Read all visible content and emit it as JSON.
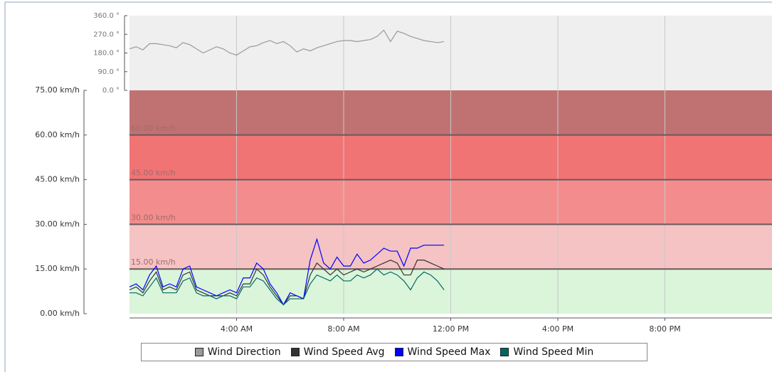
{
  "chart_data": {
    "type": "line",
    "x": [
      0,
      0.25,
      0.5,
      0.75,
      1,
      1.25,
      1.5,
      1.75,
      2,
      2.25,
      2.5,
      2.75,
      3,
      3.25,
      3.5,
      3.75,
      4,
      4.25,
      4.5,
      4.75,
      5,
      5.25,
      5.5,
      5.75,
      6,
      6.25,
      6.5,
      6.75,
      7,
      7.25,
      7.5,
      7.75,
      8,
      8.25,
      8.5,
      8.75,
      9,
      9.25,
      9.5,
      9.75,
      10,
      10.25,
      10.5,
      10.75,
      11,
      11.25,
      11.5,
      11.75
    ],
    "xlim": [
      0,
      24
    ],
    "xticks": [
      {
        "value": 4,
        "label": "4:00 AM"
      },
      {
        "value": 8,
        "label": "8:00 AM"
      },
      {
        "value": 12,
        "label": "12:00 PM"
      },
      {
        "value": 16,
        "label": "4:00 PM"
      },
      {
        "value": 20,
        "label": "8:00 PM"
      }
    ],
    "ylim": [
      0,
      75
    ],
    "yticks": [
      {
        "value": 0,
        "label": "0.00 km/h"
      },
      {
        "value": 15,
        "label": "15.00 km/h"
      },
      {
        "value": 30,
        "label": "30.00 km/h"
      },
      {
        "value": 45,
        "label": "45.00 km/h"
      },
      {
        "value": 60,
        "label": "60.00 km/h"
      },
      {
        "value": 75,
        "label": "75.00 km/h"
      }
    ],
    "y2lim": [
      0,
      360
    ],
    "y2ticks": [
      {
        "value": 0,
        "label": "0.0 °"
      },
      {
        "value": 90,
        "label": "90.0 °"
      },
      {
        "value": 180,
        "label": "180.0 °"
      },
      {
        "value": 270,
        "label": "270.0 °"
      },
      {
        "value": 360,
        "label": "360.0 °"
      }
    ],
    "thresholds": [
      {
        "value": 15,
        "label": "15.00 km/h"
      },
      {
        "value": 30,
        "label": "30.00 km/h"
      },
      {
        "value": 45,
        "label": "45.00 km/h"
      },
      {
        "value": 60,
        "label": "60.00 km/h"
      }
    ],
    "band_colors": [
      "#daf5da",
      "#f5c3c3",
      "#f38d8d",
      "#f17474",
      "#c07272"
    ],
    "grid": true,
    "legend": "bottom",
    "series": [
      {
        "name": "Wind Direction",
        "color": "#9a9a9a",
        "axis": "y2",
        "values": [
          200,
          210,
          195,
          225,
          225,
          220,
          215,
          205,
          230,
          220,
          200,
          180,
          195,
          210,
          200,
          180,
          170,
          190,
          210,
          215,
          230,
          240,
          225,
          235,
          215,
          185,
          200,
          190,
          205,
          215,
          225,
          235,
          240,
          240,
          235,
          240,
          245,
          260,
          290,
          235,
          285,
          275,
          260,
          250,
          240,
          235,
          230,
          235
        ]
      },
      {
        "name": "Wind Speed Avg",
        "color": "#333333",
        "values": [
          8,
          9,
          7,
          11,
          14,
          8,
          9,
          8,
          13,
          14,
          8,
          7,
          6,
          6,
          6,
          7,
          6,
          10,
          10,
          15,
          13,
          9,
          6,
          3,
          6,
          6,
          5,
          13,
          17,
          15,
          13,
          15,
          13,
          14,
          15,
          14,
          15,
          16,
          17,
          18,
          17,
          13,
          13,
          18,
          18,
          17,
          16,
          15
        ]
      },
      {
        "name": "Wind Speed Max",
        "color": "#0000ff",
        "values": [
          9,
          10,
          8,
          13,
          16,
          9,
          10,
          9,
          15,
          16,
          9,
          8,
          7,
          6,
          7,
          8,
          7,
          12,
          12,
          17,
          15,
          10,
          7,
          3,
          7,
          6,
          5,
          18,
          25,
          17,
          15,
          19,
          16,
          16,
          20,
          17,
          18,
          20,
          22,
          21,
          21,
          16,
          22,
          22,
          23,
          23,
          23,
          23
        ]
      },
      {
        "name": "Wind Speed Min",
        "color": "#006666",
        "values": [
          7,
          7,
          6,
          9,
          12,
          7,
          7,
          7,
          11,
          12,
          7,
          6,
          6,
          5,
          6,
          6,
          5,
          9,
          9,
          12,
          11,
          8,
          5,
          3,
          5,
          5,
          5,
          10,
          13,
          12,
          11,
          13,
          11,
          11,
          13,
          12,
          13,
          15,
          13,
          14,
          13,
          11,
          8,
          12,
          14,
          13,
          11,
          8
        ]
      }
    ]
  }
}
